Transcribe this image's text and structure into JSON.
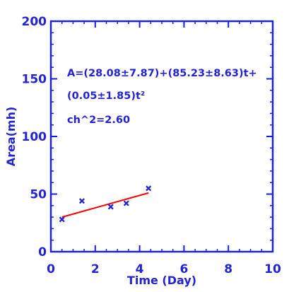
{
  "chart_data": {
    "type": "scatter",
    "xlabel": "Time (Day)",
    "ylabel": "Area(mh)",
    "xlim": [
      0,
      10
    ],
    "ylim": [
      0,
      200
    ],
    "x_ticks": [
      0,
      2,
      4,
      6,
      8,
      10
    ],
    "y_ticks": [
      0,
      50,
      100,
      150,
      200
    ],
    "x_tick_labels": [
      "0",
      "2",
      "4",
      "6",
      "8",
      "10"
    ],
    "y_tick_labels": [
      "0",
      "50",
      "100",
      "150",
      "200"
    ],
    "grid": false,
    "series": [
      {
        "kind": "points",
        "marker": "x",
        "color": "#2323d6",
        "x": [
          0.5,
          1.4,
          2.7,
          3.4,
          4.4
        ],
        "y": [
          28,
          44,
          39,
          42,
          55
        ]
      },
      {
        "kind": "fit-line",
        "color": "#ff0000",
        "x": [
          0.5,
          4.4
        ],
        "y": [
          30,
          51
        ]
      }
    ],
    "annotations": [
      "A=(28.08±7.87)+(85.23±8.63)t+",
      "(0.05±1.85)t²",
      "ch^2=2.60"
    ]
  },
  "colors": {
    "axis": "#1a1aff",
    "text": "#2323d6",
    "fit": "#ff0000",
    "marker": "#2323d6"
  }
}
